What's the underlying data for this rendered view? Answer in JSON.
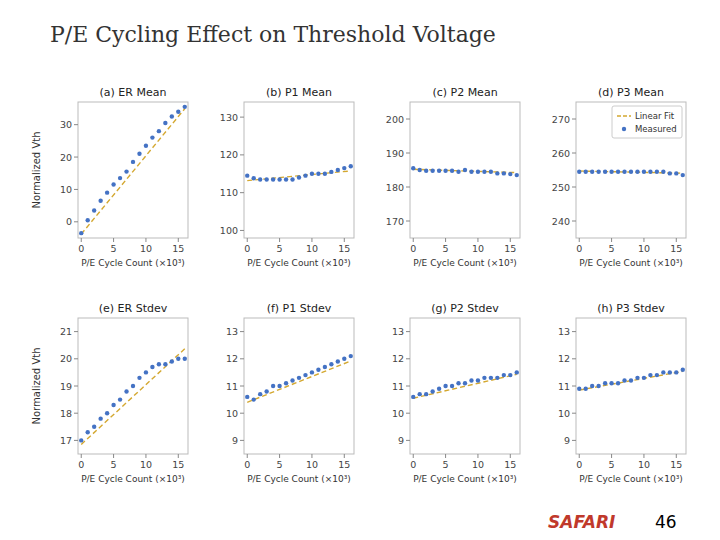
{
  "title": "P/E Cycling Effect on Threshold Voltage",
  "annotations": [
    {
      "text": "SAFARI",
      "color": "#c0392b"
    },
    {
      "text": "46"
    }
  ],
  "chart_data": [
    {
      "type": "scatter",
      "title": "(a) ER Mean",
      "xlabel": "P/E Cycle Count (×10³)",
      "ylabel": "Normalized Vth",
      "xlim": [
        -0.5,
        16.5
      ],
      "xticks": [
        0,
        5,
        10,
        15
      ],
      "ylim": [
        -5,
        37
      ],
      "yticks": [
        0,
        10,
        20,
        30
      ],
      "grid": false,
      "x": [
        0,
        1,
        2,
        3,
        4,
        5,
        6,
        7,
        8,
        9,
        10,
        11,
        12,
        13,
        14,
        15,
        16
      ],
      "series": [
        {
          "type": "line",
          "line_style": "dashed",
          "color": "#d4a830",
          "x": [
            0,
            16
          ],
          "values": [
            -3.8,
            34.92
          ]
        },
        {
          "type": "scatter",
          "marker": "circle",
          "color": "#4472c4",
          "values": [
            -3.5,
            0.5,
            3.5,
            6.5,
            9.0,
            11.5,
            13.5,
            15.5,
            18.5,
            21.0,
            23.5,
            26.0,
            28.0,
            30.5,
            32.5,
            34.0,
            35.5
          ]
        }
      ]
    },
    {
      "type": "scatter",
      "title": "(b) P1 Mean",
      "xlabel": "P/E Cycle Count (×10³)",
      "xlim": [
        -0.5,
        16.5
      ],
      "xticks": [
        0,
        5,
        10,
        15
      ],
      "ylim": [
        98,
        134
      ],
      "yticks": [
        100,
        110,
        120,
        130
      ],
      "grid": false,
      "x": [
        0,
        1,
        2,
        3,
        4,
        5,
        6,
        7,
        8,
        9,
        10,
        11,
        12,
        13,
        14,
        15,
        16
      ],
      "series": [
        {
          "type": "line",
          "line_style": "dashed",
          "color": "#d4a830",
          "x": [
            0,
            16
          ],
          "values": [
            113.2,
            115.76
          ]
        },
        {
          "type": "scatter",
          "marker": "circle",
          "color": "#4472c4",
          "values": [
            114.5,
            113.8,
            113.5,
            113.5,
            113.5,
            113.5,
            113.5,
            113.5,
            114.0,
            114.5,
            115.0,
            115.0,
            115.0,
            115.5,
            116.0,
            116.5,
            117.0
          ]
        }
      ]
    },
    {
      "type": "scatter",
      "title": "(c) P2 Mean",
      "xlabel": "P/E Cycle Count (×10³)",
      "xlim": [
        -0.5,
        16.5
      ],
      "xticks": [
        0,
        5,
        10,
        15
      ],
      "ylim": [
        165,
        205
      ],
      "yticks": [
        170,
        180,
        190,
        200
      ],
      "grid": false,
      "x": [
        0,
        1,
        2,
        3,
        4,
        5,
        6,
        7,
        8,
        9,
        10,
        11,
        12,
        13,
        14,
        15,
        16
      ],
      "series": [
        {
          "type": "line",
          "line_style": "dashed",
          "color": "#d4a830",
          "x": [
            0,
            16
          ],
          "values": [
            185.2,
            184.24
          ]
        },
        {
          "type": "scatter",
          "marker": "circle",
          "color": "#4472c4",
          "values": [
            185.5,
            185.0,
            184.8,
            184.8,
            184.8,
            184.8,
            184.8,
            184.5,
            185.0,
            184.5,
            184.5,
            184.5,
            184.5,
            184.0,
            184.0,
            183.8,
            183.5
          ]
        }
      ]
    },
    {
      "type": "scatter",
      "title": "(d) P3 Mean",
      "xlabel": "P/E Cycle Count (×10³)",
      "xlim": [
        -0.5,
        16.5
      ],
      "xticks": [
        0,
        5,
        10,
        15
      ],
      "ylim": [
        235,
        275
      ],
      "yticks": [
        240,
        250,
        260,
        270
      ],
      "grid": false,
      "legend": "upper right",
      "x": [
        0,
        1,
        2,
        3,
        4,
        5,
        6,
        7,
        8,
        9,
        10,
        11,
        12,
        13,
        14,
        15,
        16
      ],
      "series": [
        {
          "name": "Linear Fit",
          "type": "line",
          "line_style": "dashed",
          "color": "#d4a830",
          "x": [
            0,
            16
          ],
          "values": [
            254.7,
            254.06
          ]
        },
        {
          "name": "Measured",
          "type": "scatter",
          "marker": "circle",
          "color": "#4472c4",
          "values": [
            254.5,
            254.5,
            254.5,
            254.5,
            254.5,
            254.5,
            254.5,
            254.5,
            254.5,
            254.5,
            254.5,
            254.5,
            254.5,
            254.5,
            254.0,
            254.0,
            253.5
          ]
        }
      ]
    },
    {
      "type": "scatter",
      "title": "(e) ER Stdev",
      "xlabel": "P/E Cycle Count (×10³)",
      "ylabel": "Normalized Vth",
      "xlim": [
        -0.5,
        16.5
      ],
      "xticks": [
        0,
        5,
        10,
        15
      ],
      "ylim": [
        16.5,
        21.5
      ],
      "yticks": [
        17,
        18,
        19,
        20,
        21
      ],
      "grid": false,
      "x": [
        0,
        1,
        2,
        3,
        4,
        5,
        6,
        7,
        8,
        9,
        10,
        11,
        12,
        13,
        14,
        15,
        16
      ],
      "series": [
        {
          "type": "line",
          "line_style": "dashed",
          "color": "#d4a830",
          "x": [
            0,
            16
          ],
          "values": [
            16.85,
            20.37
          ]
        },
        {
          "type": "scatter",
          "marker": "circle",
          "color": "#4472c4",
          "values": [
            17.0,
            17.3,
            17.5,
            17.8,
            18.0,
            18.3,
            18.5,
            18.8,
            19.0,
            19.3,
            19.5,
            19.7,
            19.8,
            19.8,
            19.9,
            20.0,
            20.0
          ]
        }
      ]
    },
    {
      "type": "scatter",
      "title": "(f) P1 Stdev",
      "xlabel": "P/E Cycle Count (×10³)",
      "xlim": [
        -0.5,
        16.5
      ],
      "xticks": [
        0,
        5,
        10,
        15
      ],
      "ylim": [
        8.5,
        13.5
      ],
      "yticks": [
        9,
        10,
        11,
        12,
        13
      ],
      "grid": false,
      "x": [
        0,
        1,
        2,
        3,
        4,
        5,
        6,
        7,
        8,
        9,
        10,
        11,
        12,
        13,
        14,
        15,
        16
      ],
      "series": [
        {
          "type": "line",
          "line_style": "dashed",
          "color": "#d4a830",
          "x": [
            0,
            16
          ],
          "values": [
            10.4,
            11.92
          ]
        },
        {
          "type": "scatter",
          "marker": "circle",
          "color": "#4472c4",
          "values": [
            10.6,
            10.5,
            10.7,
            10.8,
            11.0,
            11.0,
            11.1,
            11.2,
            11.3,
            11.4,
            11.5,
            11.6,
            11.7,
            11.8,
            11.9,
            12.0,
            12.1
          ]
        }
      ]
    },
    {
      "type": "scatter",
      "title": "(g) P2 Stdev",
      "xlabel": "P/E Cycle Count (×10³)",
      "xlim": [
        -0.5,
        16.5
      ],
      "xticks": [
        0,
        5,
        10,
        15
      ],
      "ylim": [
        8.5,
        13.5
      ],
      "yticks": [
        9,
        10,
        11,
        12,
        13
      ],
      "grid": false,
      "x": [
        0,
        1,
        2,
        3,
        4,
        5,
        6,
        7,
        8,
        9,
        10,
        11,
        12,
        13,
        14,
        15,
        16
      ],
      "series": [
        {
          "type": "line",
          "line_style": "dashed",
          "color": "#d4a830",
          "x": [
            0,
            16
          ],
          "values": [
            10.55,
            11.43
          ]
        },
        {
          "type": "scatter",
          "marker": "circle",
          "color": "#4472c4",
          "values": [
            10.6,
            10.7,
            10.7,
            10.8,
            10.9,
            11.0,
            11.0,
            11.1,
            11.1,
            11.2,
            11.2,
            11.3,
            11.3,
            11.3,
            11.4,
            11.4,
            11.5
          ]
        }
      ]
    },
    {
      "type": "scatter",
      "title": "(h) P3 Stdev",
      "xlabel": "P/E Cycle Count (×10³)",
      "xlim": [
        -0.5,
        16.5
      ],
      "xticks": [
        0,
        5,
        10,
        15
      ],
      "ylim": [
        8.5,
        13.5
      ],
      "yticks": [
        9,
        10,
        11,
        12,
        13
      ],
      "grid": false,
      "x": [
        0,
        1,
        2,
        3,
        4,
        5,
        6,
        7,
        8,
        9,
        10,
        11,
        12,
        13,
        14,
        15,
        16
      ],
      "series": [
        {
          "type": "line",
          "line_style": "dashed",
          "color": "#d4a830",
          "x": [
            0,
            16
          ],
          "values": [
            10.85,
            11.538
          ]
        },
        {
          "type": "scatter",
          "marker": "circle",
          "color": "#4472c4",
          "values": [
            10.9,
            10.9,
            11.0,
            11.0,
            11.1,
            11.1,
            11.1,
            11.2,
            11.2,
            11.3,
            11.3,
            11.4,
            11.4,
            11.5,
            11.5,
            11.5,
            11.6
          ]
        }
      ]
    }
  ]
}
